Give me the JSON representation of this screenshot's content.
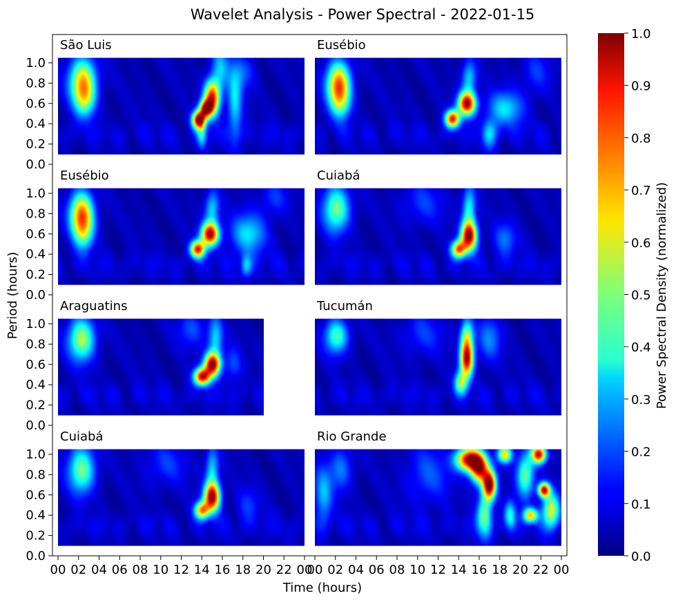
{
  "title": "Wavelet Analysis - Power Spectral - 2022-01-15",
  "xlabel": "Time (hours)",
  "ylabel": "Period (hours)",
  "x_tick_labels": [
    "00",
    "02",
    "04",
    "06",
    "08",
    "10",
    "12",
    "14",
    "16",
    "18",
    "20",
    "22",
    "00"
  ],
  "y_tick_labels": [
    "0.0",
    "0.2",
    "0.4",
    "0.6",
    "0.8",
    "1.0"
  ],
  "colorbar": {
    "label": "Power Spectral Density (normalized)",
    "tick_labels": [
      "0.0",
      "0.1",
      "0.2",
      "0.3",
      "0.4",
      "0.5",
      "0.6",
      "0.7",
      "0.8",
      "0.9",
      "1.0"
    ],
    "colormap": "jet",
    "range": [
      0,
      1
    ]
  },
  "chart_data": {
    "type": "heatmap",
    "title": "Wavelet Analysis - Power Spectral - 2022-01-15",
    "xlabel": "Time (hours)",
    "ylabel": "Period (hours)",
    "x_range_hours": [
      0,
      24
    ],
    "y_ticks": [
      0.0,
      0.2,
      0.4,
      0.6,
      0.8,
      1.0
    ],
    "y_extent": [
      0.1,
      1.05
    ],
    "color_range": [
      0,
      1
    ],
    "panels": [
      {
        "station": "São Luis",
        "column": "left",
        "t_end": 24,
        "blobs": [
          {
            "t": 2.4,
            "p": 0.82,
            "power": 0.62,
            "st": 0.9,
            "sp": 0.16
          },
          {
            "t": 2.6,
            "p": 0.62,
            "power": 0.3,
            "st": 0.7,
            "sp": 0.12
          },
          {
            "t": 13.7,
            "p": 0.44,
            "power": 0.9,
            "st": 0.45,
            "sp": 0.06
          },
          {
            "t": 15.0,
            "p": 0.66,
            "power": 0.82,
            "st": 0.55,
            "sp": 0.12
          },
          {
            "t": 14.4,
            "p": 0.55,
            "power": 0.75,
            "st": 0.45,
            "sp": 0.06
          },
          {
            "t": 14.0,
            "p": 0.3,
            "power": 0.3,
            "st": 0.35,
            "sp": 0.1
          },
          {
            "t": 15.8,
            "p": 0.95,
            "power": 0.25,
            "st": 0.6,
            "sp": 0.15
          },
          {
            "t": 17.2,
            "p": 0.6,
            "power": 0.3,
            "st": 0.5,
            "sp": 0.25
          },
          {
            "t": 18.0,
            "p": 0.9,
            "power": 0.15,
            "st": 0.8,
            "sp": 0.12
          }
        ]
      },
      {
        "station": "Eusébio",
        "column": "right",
        "t_end": 24,
        "blobs": [
          {
            "t": 2.3,
            "p": 0.8,
            "power": 0.7,
            "st": 0.8,
            "sp": 0.15
          },
          {
            "t": 2.5,
            "p": 0.6,
            "power": 0.3,
            "st": 0.7,
            "sp": 0.12
          },
          {
            "t": 13.4,
            "p": 0.45,
            "power": 0.8,
            "st": 0.5,
            "sp": 0.06
          },
          {
            "t": 14.8,
            "p": 0.6,
            "power": 0.9,
            "st": 0.6,
            "sp": 0.08
          },
          {
            "t": 15.0,
            "p": 0.85,
            "power": 0.3,
            "st": 0.5,
            "sp": 0.12
          },
          {
            "t": 18.5,
            "p": 0.55,
            "power": 0.3,
            "st": 1.2,
            "sp": 0.12
          },
          {
            "t": 17.0,
            "p": 0.3,
            "power": 0.25,
            "st": 0.5,
            "sp": 0.1
          },
          {
            "t": 21.5,
            "p": 0.9,
            "power": 0.12,
            "st": 1.0,
            "sp": 0.15
          }
        ]
      },
      {
        "station": "Eusébio",
        "column": "left",
        "t_end": 24,
        "blobs": [
          {
            "t": 2.3,
            "p": 0.8,
            "power": 0.7,
            "st": 0.8,
            "sp": 0.15
          },
          {
            "t": 2.5,
            "p": 0.6,
            "power": 0.3,
            "st": 0.7,
            "sp": 0.12
          },
          {
            "t": 13.6,
            "p": 0.45,
            "power": 0.8,
            "st": 0.5,
            "sp": 0.06
          },
          {
            "t": 14.8,
            "p": 0.6,
            "power": 0.9,
            "st": 0.6,
            "sp": 0.08
          },
          {
            "t": 15.0,
            "p": 0.85,
            "power": 0.3,
            "st": 0.5,
            "sp": 0.12
          },
          {
            "t": 18.5,
            "p": 0.6,
            "power": 0.3,
            "st": 1.2,
            "sp": 0.14
          },
          {
            "t": 18.3,
            "p": 0.28,
            "power": 0.25,
            "st": 0.4,
            "sp": 0.08
          },
          {
            "t": 21.0,
            "p": 0.95,
            "power": 0.12,
            "st": 1.0,
            "sp": 0.12
          }
        ]
      },
      {
        "station": "Cuiabá",
        "column": "right",
        "t_end": 24,
        "blobs": [
          {
            "t": 2.1,
            "p": 0.85,
            "power": 0.45,
            "st": 0.9,
            "sp": 0.16
          },
          {
            "t": 14.0,
            "p": 0.45,
            "power": 0.7,
            "st": 0.5,
            "sp": 0.06
          },
          {
            "t": 15.0,
            "p": 0.58,
            "power": 0.9,
            "st": 0.55,
            "sp": 0.1
          },
          {
            "t": 15.0,
            "p": 0.85,
            "power": 0.35,
            "st": 0.45,
            "sp": 0.15
          },
          {
            "t": 18.5,
            "p": 0.55,
            "power": 0.18,
            "st": 0.8,
            "sp": 0.12
          },
          {
            "t": 10.5,
            "p": 0.9,
            "power": 0.12,
            "st": 1.5,
            "sp": 0.15
          }
        ]
      },
      {
        "station": "Araguatins",
        "column": "left",
        "t_end": 20,
        "blobs": [
          {
            "t": 2.3,
            "p": 0.85,
            "power": 0.5,
            "st": 0.9,
            "sp": 0.15
          },
          {
            "t": 14.0,
            "p": 0.48,
            "power": 0.85,
            "st": 0.55,
            "sp": 0.06
          },
          {
            "t": 15.0,
            "p": 0.6,
            "power": 0.9,
            "st": 0.55,
            "sp": 0.08
          },
          {
            "t": 15.3,
            "p": 0.85,
            "power": 0.3,
            "st": 0.5,
            "sp": 0.15
          },
          {
            "t": 13.0,
            "p": 0.95,
            "power": 0.15,
            "st": 1.0,
            "sp": 0.12
          },
          {
            "t": 17.0,
            "p": 0.6,
            "power": 0.15,
            "st": 0.6,
            "sp": 0.12
          }
        ]
      },
      {
        "station": "Tucumán",
        "column": "right",
        "t_end": 24,
        "blobs": [
          {
            "t": 2.1,
            "p": 0.88,
            "power": 0.4,
            "st": 0.8,
            "sp": 0.12
          },
          {
            "t": 14.8,
            "p": 0.65,
            "power": 0.85,
            "st": 0.45,
            "sp": 0.12
          },
          {
            "t": 14.8,
            "p": 0.88,
            "power": 0.45,
            "st": 0.45,
            "sp": 0.12
          },
          {
            "t": 14.2,
            "p": 0.42,
            "power": 0.45,
            "st": 0.45,
            "sp": 0.08
          },
          {
            "t": 17.0,
            "p": 0.85,
            "power": 0.2,
            "st": 0.8,
            "sp": 0.15
          },
          {
            "t": 10.5,
            "p": 0.9,
            "power": 0.12,
            "st": 1.5,
            "sp": 0.15
          }
        ]
      },
      {
        "station": "Cuiabá",
        "column": "left",
        "t_end": 24,
        "blobs": [
          {
            "t": 2.3,
            "p": 0.85,
            "power": 0.45,
            "st": 0.9,
            "sp": 0.16
          },
          {
            "t": 14.0,
            "p": 0.45,
            "power": 0.65,
            "st": 0.5,
            "sp": 0.06
          },
          {
            "t": 15.0,
            "p": 0.58,
            "power": 0.9,
            "st": 0.55,
            "sp": 0.1
          },
          {
            "t": 15.0,
            "p": 0.85,
            "power": 0.3,
            "st": 0.45,
            "sp": 0.15
          },
          {
            "t": 10.5,
            "p": 0.9,
            "power": 0.12,
            "st": 1.5,
            "sp": 0.15
          },
          {
            "t": 18.5,
            "p": 0.5,
            "power": 0.12,
            "st": 0.8,
            "sp": 0.12
          }
        ]
      },
      {
        "station": "Rio Grande",
        "column": "right",
        "t_end": 24,
        "blobs": [
          {
            "t": 0.8,
            "p": 0.6,
            "power": 0.25,
            "st": 0.6,
            "sp": 0.2
          },
          {
            "t": 2.5,
            "p": 0.85,
            "power": 0.2,
            "st": 0.8,
            "sp": 0.15
          },
          {
            "t": 15.0,
            "p": 0.95,
            "power": 0.9,
            "st": 0.9,
            "sp": 0.08
          },
          {
            "t": 16.0,
            "p": 0.85,
            "power": 0.75,
            "st": 0.6,
            "sp": 0.1
          },
          {
            "t": 17.0,
            "p": 0.7,
            "power": 0.95,
            "st": 0.45,
            "sp": 0.1
          },
          {
            "t": 16.5,
            "p": 0.4,
            "power": 0.45,
            "st": 0.5,
            "sp": 0.15
          },
          {
            "t": 18.5,
            "p": 1.0,
            "power": 0.6,
            "st": 0.5,
            "sp": 0.06
          },
          {
            "t": 19.0,
            "p": 0.4,
            "power": 0.35,
            "st": 0.4,
            "sp": 0.1
          },
          {
            "t": 20.5,
            "p": 0.8,
            "power": 0.45,
            "st": 0.6,
            "sp": 0.15
          },
          {
            "t": 21.8,
            "p": 1.0,
            "power": 0.85,
            "st": 0.5,
            "sp": 0.06
          },
          {
            "t": 22.3,
            "p": 0.65,
            "power": 0.85,
            "st": 0.4,
            "sp": 0.05
          },
          {
            "t": 21.0,
            "p": 0.4,
            "power": 0.6,
            "st": 0.5,
            "sp": 0.05
          },
          {
            "t": 23.0,
            "p": 0.45,
            "power": 0.55,
            "st": 0.6,
            "sp": 0.12
          },
          {
            "t": 11.0,
            "p": 0.8,
            "power": 0.15,
            "st": 1.5,
            "sp": 0.2
          }
        ]
      }
    ]
  }
}
